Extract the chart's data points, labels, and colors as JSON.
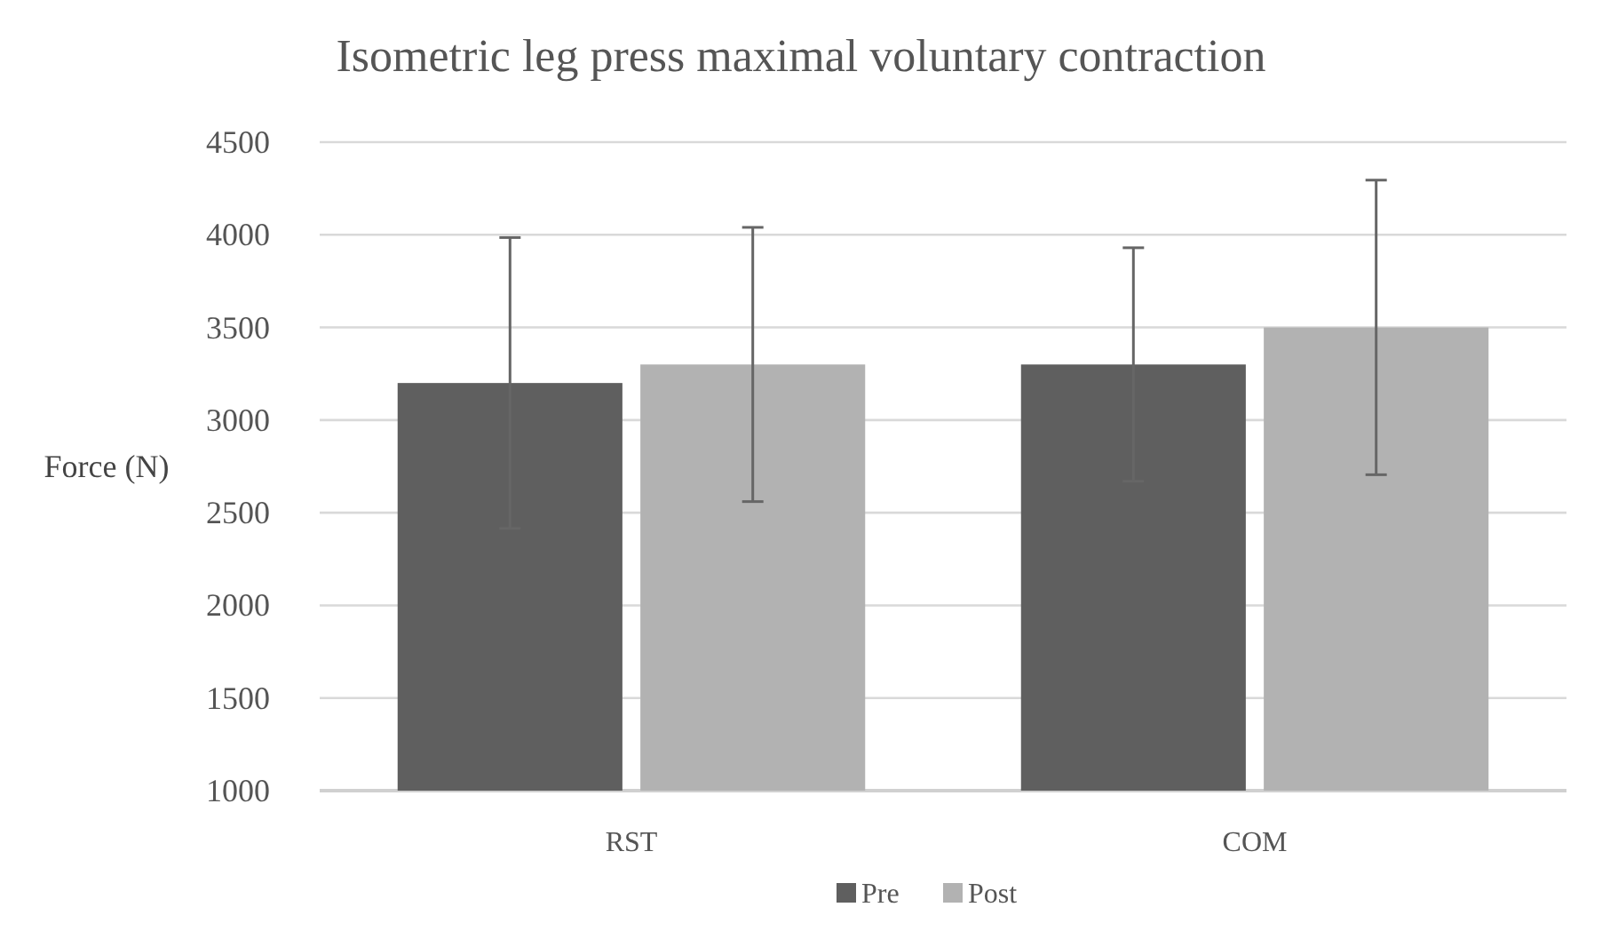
{
  "chart_data": {
    "type": "bar",
    "title": "Isometric leg press maximal voluntary contraction",
    "ylabel": "Force (N)",
    "categories": [
      "RST",
      "COM"
    ],
    "series": [
      {
        "name": "Pre",
        "color": "#5f5f5f",
        "values": [
          3200,
          3300
        ],
        "errors": [
          785,
          630
        ]
      },
      {
        "name": "Post",
        "color": "#b2b2b2",
        "values": [
          3300,
          3500
        ],
        "errors": [
          740,
          795
        ]
      }
    ],
    "ylim": [
      1000,
      4500
    ],
    "yticks": [
      1000,
      1500,
      2000,
      2500,
      3000,
      3500,
      4000,
      4500
    ],
    "grid": "y",
    "legend": "bottom"
  }
}
